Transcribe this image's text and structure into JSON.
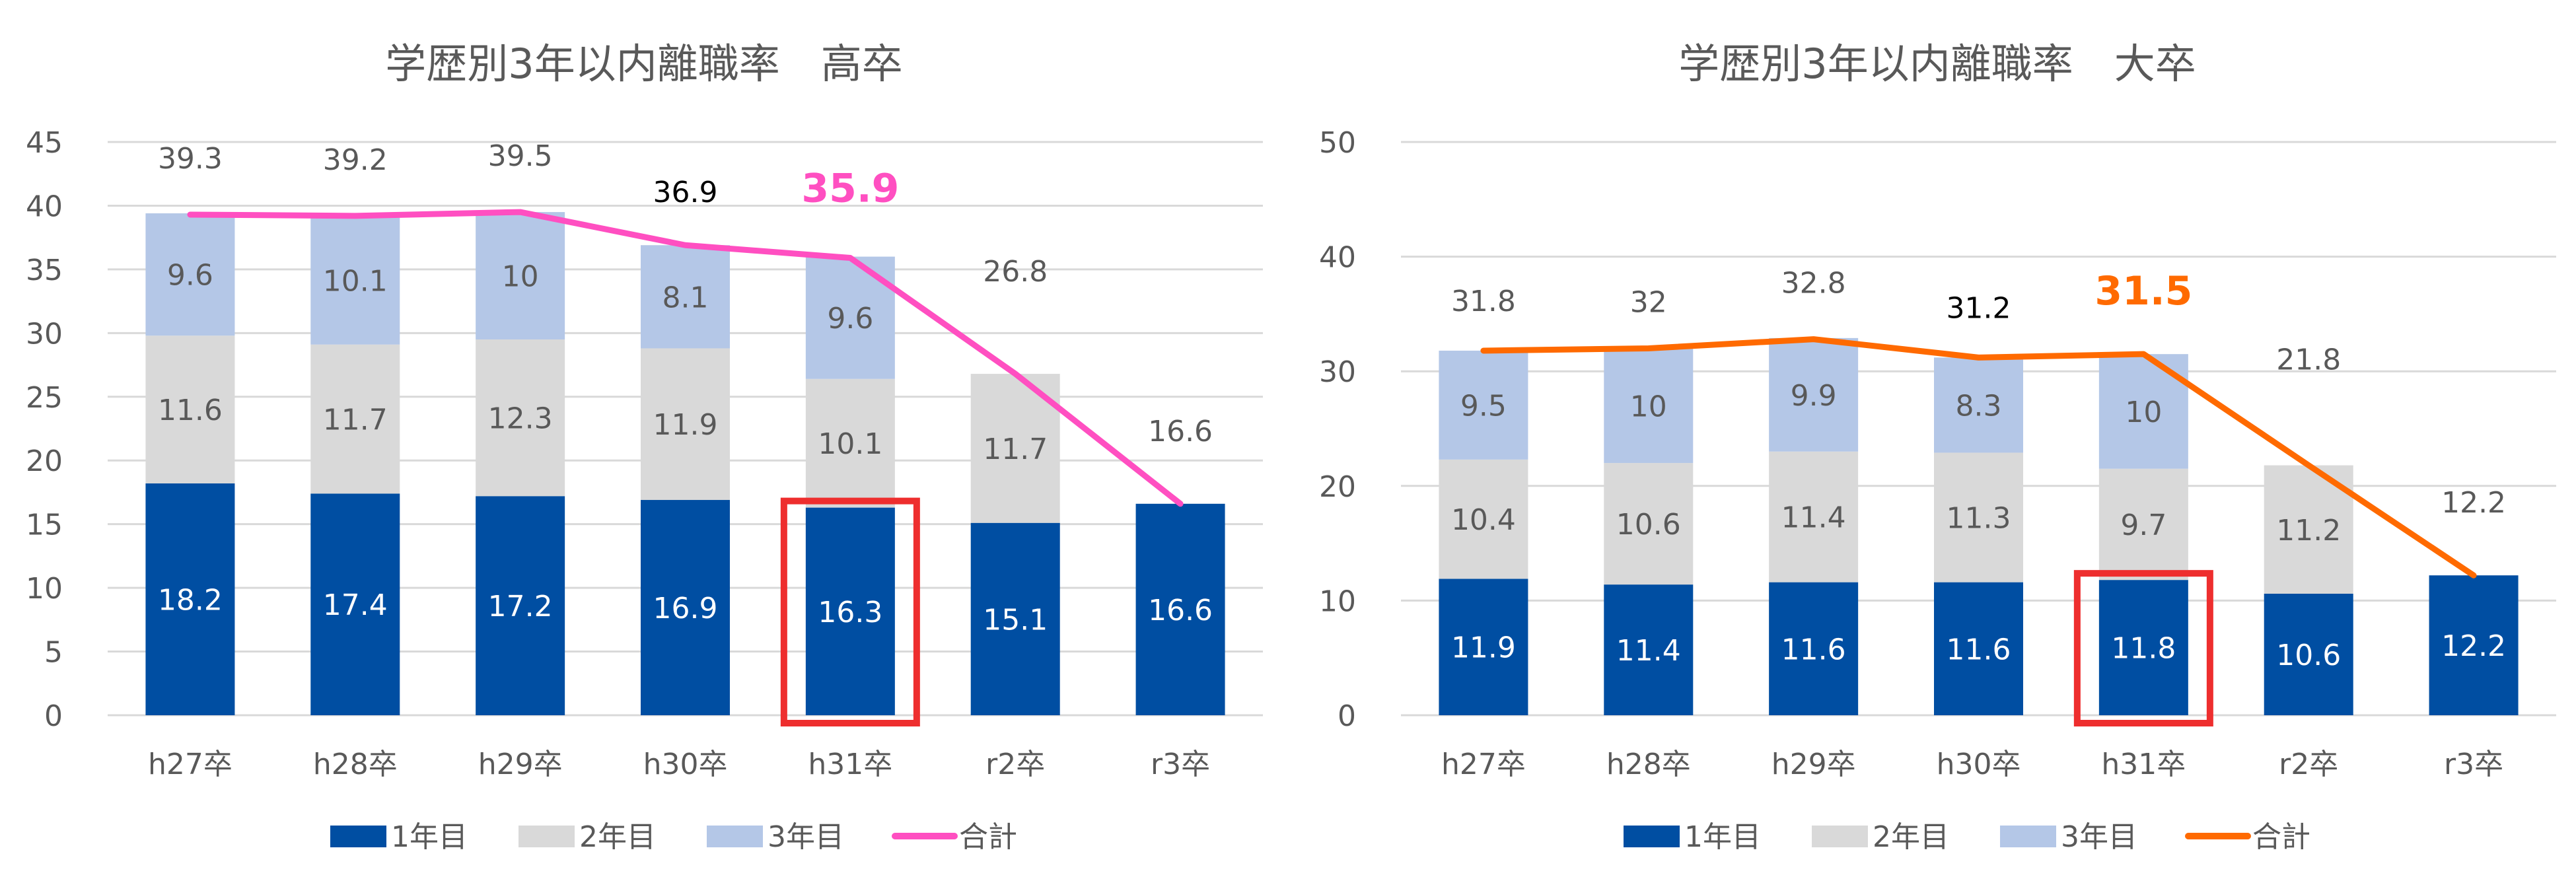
{
  "colors": {
    "year1": "#004EA2",
    "year2": "#D9D9D9",
    "year3": "#B4C7E7",
    "highlight_box": "#EE2E2E",
    "grid": "#D9D9D9",
    "text": "#595959"
  },
  "chart_data": [
    {
      "type": "bar",
      "stacked": true,
      "title": "学歴別3年以内離職率　高卒",
      "categories": [
        "h27卒",
        "h28卒",
        "h29卒",
        "h30卒",
        "h31卒",
        "r2卒",
        "r3卒"
      ],
      "ylim": [
        0,
        45
      ],
      "yticks": [
        0,
        5,
        10,
        15,
        20,
        25,
        30,
        35,
        40,
        45
      ],
      "grid": true,
      "legend_position": "bottom",
      "series": [
        {
          "name": "1年目",
          "type": "bar",
          "color": "#004EA2",
          "values": [
            18.2,
            17.4,
            17.2,
            16.9,
            16.3,
            15.1,
            16.6
          ]
        },
        {
          "name": "2年目",
          "type": "bar",
          "color": "#D9D9D9",
          "values": [
            11.6,
            11.7,
            12.3,
            11.9,
            10.1,
            11.7,
            null
          ]
        },
        {
          "name": "3年目",
          "type": "bar",
          "color": "#B4C7E7",
          "values": [
            9.6,
            10.1,
            10,
            8.1,
            9.6,
            null,
            null
          ]
        },
        {
          "name": "合計",
          "type": "line",
          "color": "#FF4FC1",
          "values": [
            39.3,
            39.2,
            39.5,
            36.9,
            35.9,
            26.8,
            16.6
          ]
        }
      ],
      "highlighted_category": "h31卒"
    },
    {
      "type": "bar",
      "stacked": true,
      "title": "学歴別3年以内離職率　大卒",
      "categories": [
        "h27卒",
        "h28卒",
        "h29卒",
        "h30卒",
        "h31卒",
        "r2卒",
        "r3卒"
      ],
      "ylim": [
        0,
        50
      ],
      "yticks": [
        0,
        10,
        20,
        30,
        40,
        50
      ],
      "grid": true,
      "legend_position": "bottom",
      "series": [
        {
          "name": "1年目",
          "type": "bar",
          "color": "#004EA2",
          "values": [
            11.9,
            11.4,
            11.6,
            11.6,
            11.8,
            10.6,
            12.2
          ]
        },
        {
          "name": "2年目",
          "type": "bar",
          "color": "#D9D9D9",
          "values": [
            10.4,
            10.6,
            11.4,
            11.3,
            9.7,
            11.2,
            null
          ]
        },
        {
          "name": "3年目",
          "type": "bar",
          "color": "#B4C7E7",
          "values": [
            9.5,
            10,
            9.9,
            8.3,
            10,
            null,
            null
          ]
        },
        {
          "name": "合計",
          "type": "line",
          "color": "#FF6A00",
          "values": [
            31.8,
            32,
            32.8,
            31.2,
            31.5,
            21.8,
            12.2
          ]
        }
      ],
      "highlighted_category": "h31卒"
    }
  ]
}
